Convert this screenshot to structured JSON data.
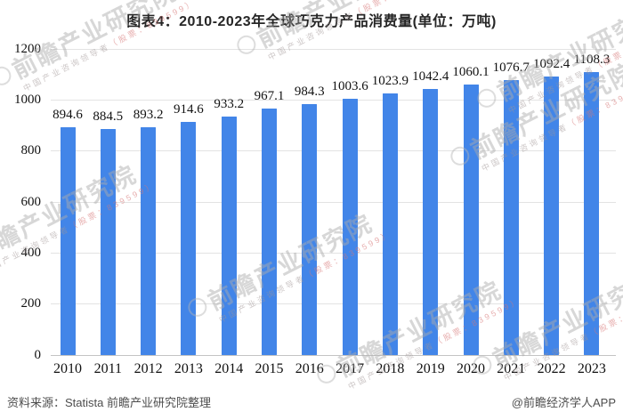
{
  "title": "图表4：2010-2023年全球巧克力产品消费量(单位：万吨)",
  "chart_data": {
    "type": "bar",
    "title": "图表4：2010-2023年全球巧克力产品消费量(单位：万吨)",
    "categories": [
      "2010",
      "2011",
      "2012",
      "2013",
      "2014",
      "2015",
      "2016",
      "2017",
      "2018",
      "2019",
      "2020",
      "2021",
      "2022",
      "2023"
    ],
    "values": [
      894.6,
      884.5,
      893.2,
      914.6,
      933.2,
      967.1,
      984.3,
      1003.6,
      1023.9,
      1042.4,
      1060.1,
      1076.7,
      1092.4,
      1108.3
    ],
    "xlabel": "",
    "ylabel": "",
    "ylim": [
      0,
      1200
    ],
    "yticks": [
      0,
      200,
      400,
      600,
      800,
      1000,
      1200
    ],
    "grid": true,
    "legend": false,
    "value_labels": true,
    "bar_color": "#4285e8",
    "grid_color": "#e3e3e3",
    "axis_line_color": "#c4c4c4",
    "text_color": "#111111"
  },
  "footer": {
    "source": "资料来源：Statista 前瞻产业研究院整理",
    "credit": "@前瞻经济学人APP"
  },
  "watermark": {
    "text": "前瞻产业研究院",
    "sub_gray": "中国产业咨询领导者",
    "sub_red": "（股票：839599）"
  }
}
